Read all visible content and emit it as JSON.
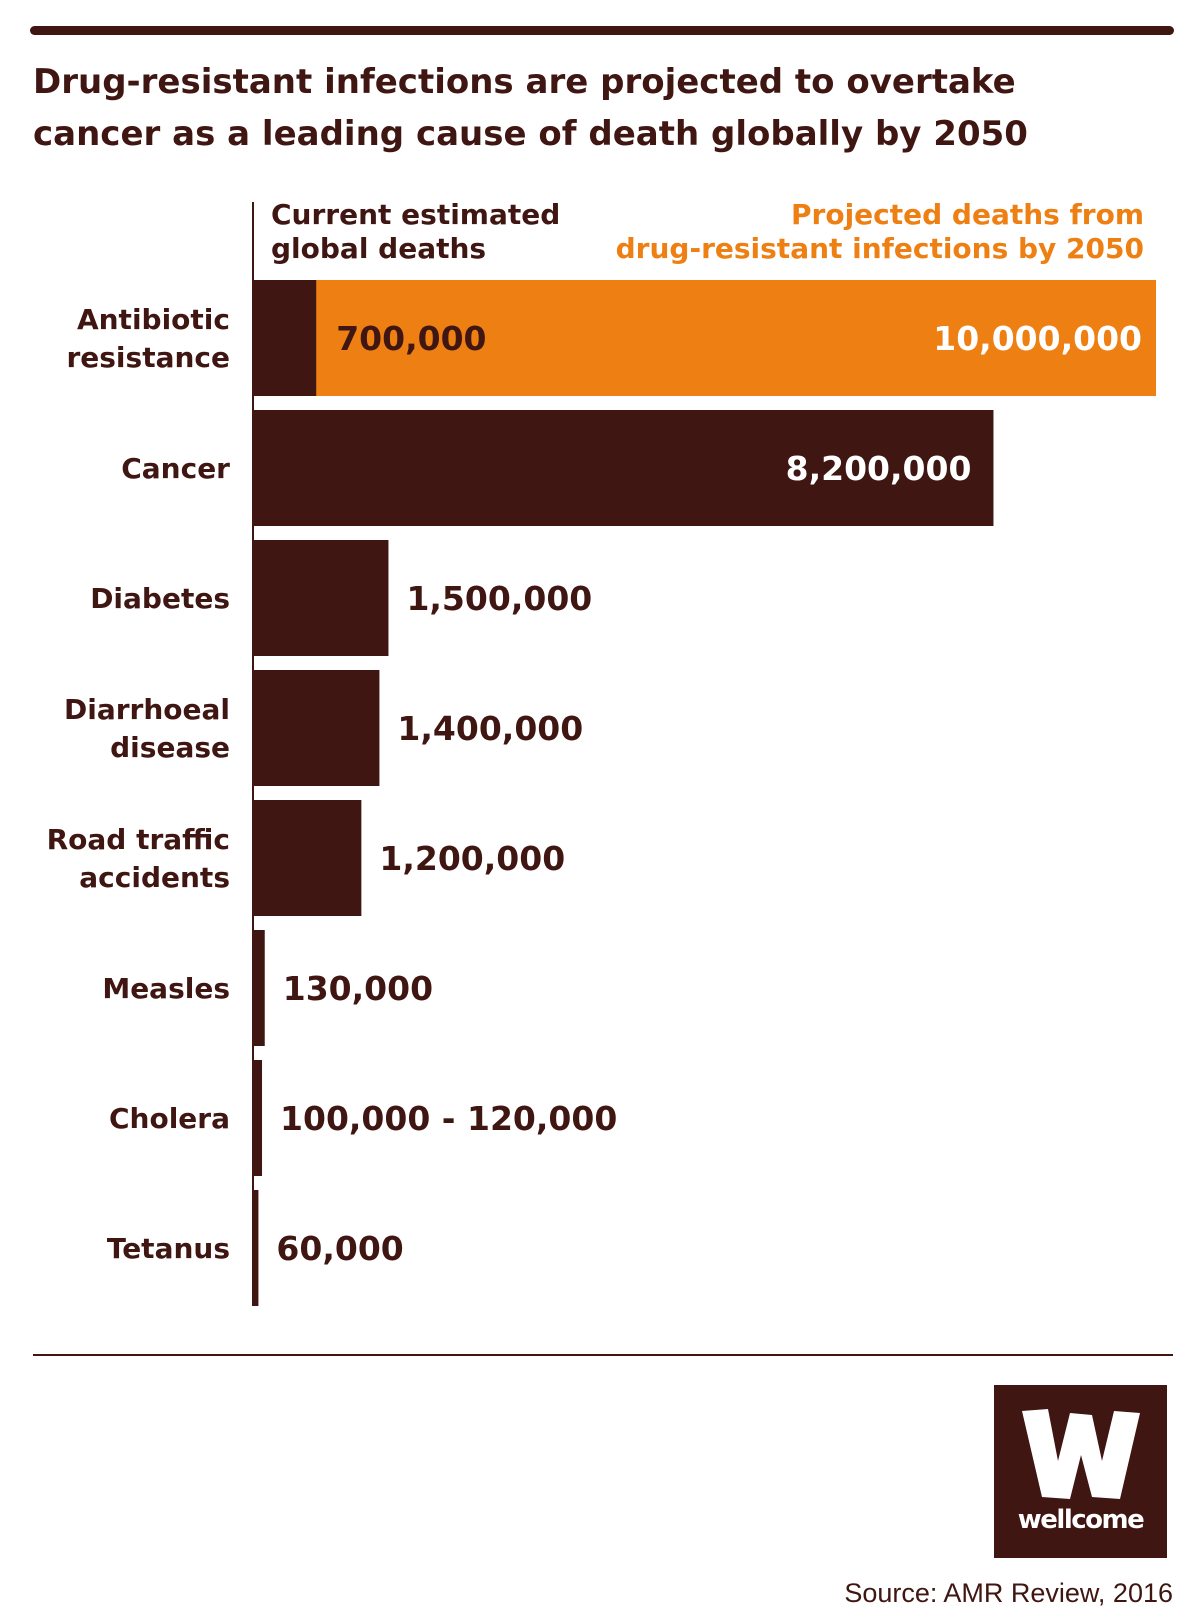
{
  "title": "Drug-resistant infections are projected to overtake cancer as a leading cause of death globally by 2050",
  "legend": {
    "current": [
      "Current estimated",
      "global deaths"
    ],
    "projected": [
      "Projected deaths from",
      "drug-resistant infections by 2050"
    ]
  },
  "colors": {
    "dark": "#3f1612",
    "orange": "#ee7f13",
    "white": "#ffffff"
  },
  "chart_data": {
    "type": "bar",
    "orientation": "horizontal",
    "title": "Drug-resistant infections are projected to overtake cancer as a leading cause of death globally by 2050",
    "series": [
      {
        "name": "Current estimated global deaths",
        "color": "#3f1612"
      },
      {
        "name": "Projected deaths from drug-resistant infections by 2050",
        "color": "#ee7f13"
      }
    ],
    "categories": [
      {
        "label": [
          "Antibiotic",
          "resistance"
        ],
        "current": 700000,
        "current_text": "700,000",
        "projected": 10000000,
        "projected_text": "10,000,000"
      },
      {
        "label": [
          "Cancer"
        ],
        "current": 8200000,
        "current_text": "8,200,000"
      },
      {
        "label": [
          "Diabetes"
        ],
        "current": 1500000,
        "current_text": "1,500,000"
      },
      {
        "label": [
          "Diarrhoeal",
          "disease"
        ],
        "current": 1400000,
        "current_text": "1,400,000"
      },
      {
        "label": [
          "Road traffic",
          "accidents"
        ],
        "current": 1200000,
        "current_text": "1,200,000"
      },
      {
        "label": [
          "Measles"
        ],
        "current": 130000,
        "current_text": "130,000"
      },
      {
        "label": [
          "Cholera"
        ],
        "current": 100000,
        "current_high": 120000,
        "current_text": "100,000 - 120,000"
      },
      {
        "label": [
          "Tetanus"
        ],
        "current": 60000,
        "current_text": "60,000"
      }
    ],
    "xlim": [
      0,
      10000000
    ],
    "grid": false,
    "legend": "top"
  },
  "footer": {
    "logo_text": "wellcome",
    "source": "Source: AMR Review, 2016"
  }
}
